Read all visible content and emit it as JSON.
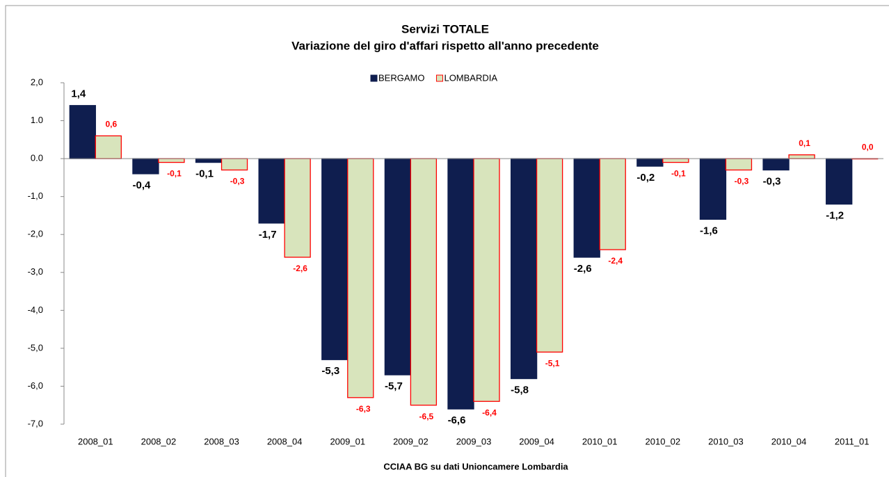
{
  "chart_data": {
    "type": "bar",
    "title": "Servizi TOTALE",
    "subtitle": "Variazione del giro d'affari rispetto all'anno precedente",
    "x_label": "CCIAA BG su dati Unioncamere Lombardia",
    "categories": [
      "2008_01",
      "2008_02",
      "2008_03",
      "2008_04",
      "2009_01",
      "2009_02",
      "2009_03",
      "2009_04",
      "2010_01",
      "2010_02",
      "2010_03",
      "2010_04",
      "2011_01"
    ],
    "series": [
      {
        "name": "BERGAMO",
        "color": "#0f1e4f",
        "values": [
          1.4,
          -0.4,
          -0.1,
          -1.7,
          -5.3,
          -5.7,
          -6.6,
          -5.8,
          -2.6,
          -0.2,
          -1.6,
          -0.3,
          -1.2
        ],
        "value_labels": [
          "1,4",
          "-0,4",
          "-0,1",
          "-1,7",
          "-5,3",
          "-5,7",
          "-6,6",
          "-5,8",
          "-2,6",
          "-0,2",
          "-1,6",
          "-0,3",
          "-1,2"
        ]
      },
      {
        "name": "LOMBARDIA",
        "color": "#d8e4bc",
        "edge_color": "#ff0000",
        "values": [
          0.6,
          -0.1,
          -0.3,
          -2.6,
          -6.3,
          -6.5,
          -6.4,
          -5.1,
          -2.4,
          -0.1,
          -0.3,
          0.1,
          0.0
        ],
        "value_labels": [
          "0,6",
          "-0,1",
          "-0,3",
          "-2,6",
          "-6,3",
          "-6,5",
          "-6,4",
          "-5,1",
          "-2,4",
          "-0,1",
          "-0,3",
          "0,1",
          "0,0"
        ]
      }
    ],
    "ylim": [
      -7,
      2
    ],
    "yticks": [
      {
        "value": 2,
        "label": "2,0"
      },
      {
        "value": 1,
        "label": "1.0"
      },
      {
        "value": 0,
        "label": "0.0"
      },
      {
        "value": -1,
        "label": "-1,0"
      },
      {
        "value": -2,
        "label": "-2,0"
      },
      {
        "value": -3,
        "label": "-3,0"
      },
      {
        "value": -4,
        "label": "-4,0"
      },
      {
        "value": -5,
        "label": "-5,0"
      },
      {
        "value": -6,
        "label": "-6,0"
      },
      {
        "value": -7,
        "label": "-7,0"
      }
    ],
    "legend": "top"
  }
}
